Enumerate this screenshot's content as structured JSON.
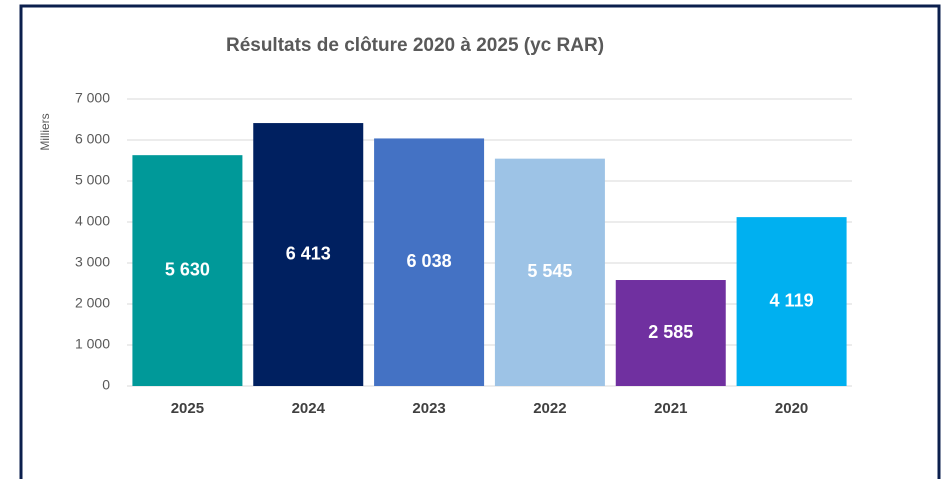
{
  "chart_data": {
    "type": "bar",
    "title": "Résultats de clôture 2020 à 2025 (yc RAR)",
    "y_axis_label": "Milliers",
    "categories": [
      "2025",
      "2024",
      "2023",
      "2022",
      "2021",
      "2020"
    ],
    "values": [
      5630,
      6413,
      6038,
      5545,
      2585,
      4119
    ],
    "value_labels": [
      "5 630",
      "6 413",
      "6 038",
      "5 545",
      "2 585",
      "4 119"
    ],
    "colors": [
      "#009999",
      "#002060",
      "#4472c4",
      "#9dc3e6",
      "#7030a0",
      "#00b0f0"
    ],
    "ylim": [
      0,
      7000
    ],
    "yticks": [
      0,
      {
        "value": 1000,
        "label": "1 000"
      },
      {
        "value": 2000,
        "label": "2 000"
      },
      {
        "value": 3000,
        "label": "3 000"
      },
      {
        "value": 4000,
        "label": "4 000"
      },
      {
        "value": 5000,
        "label": "5 000"
      },
      {
        "value": 6000,
        "label": "6 000"
      },
      {
        "value": 7000,
        "label": "7 000"
      }
    ],
    "grid": true
  }
}
